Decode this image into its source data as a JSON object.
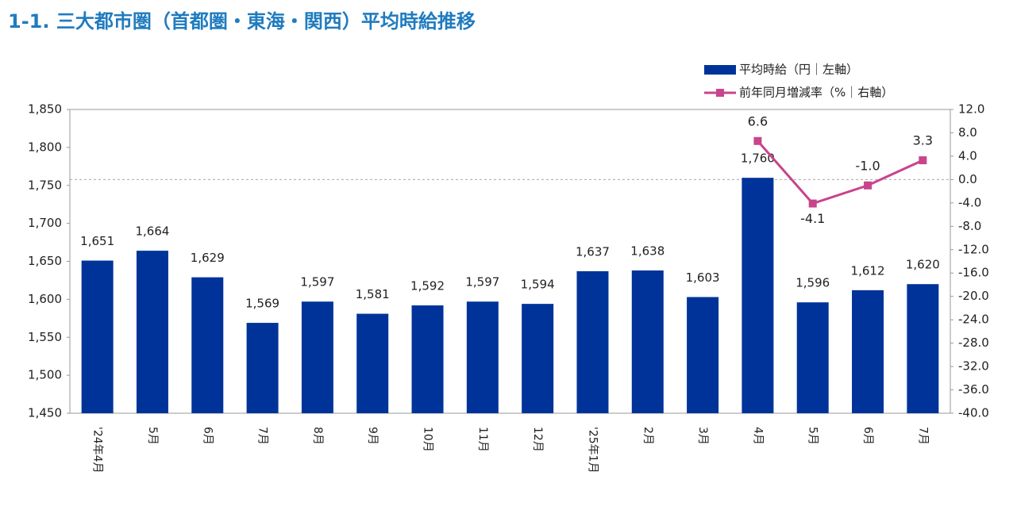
{
  "chart_data": {
    "type": "bar_line",
    "title": "1-1. 三大都市圏（首都圏・東海・関西）平均時給推移",
    "categories": [
      "'24年4月",
      "5月",
      "6月",
      "7月",
      "8月",
      "9月",
      "10月",
      "11月",
      "12月",
      "'25年1月",
      "2月",
      "3月",
      "4月",
      "5月",
      "6月",
      "7月"
    ],
    "series": [
      {
        "name": "平均時給（円｜左軸）",
        "color": "#003399",
        "kind": "bar",
        "values": [
          1651,
          1664,
          1629,
          1569,
          1597,
          1581,
          1592,
          1597,
          1594,
          1637,
          1638,
          1603,
          1760,
          1596,
          1612,
          1620
        ],
        "value_labels": [
          "1,651",
          "1,664",
          "1,629",
          "1,569",
          "1,597",
          "1,581",
          "1,592",
          "1,597",
          "1,594",
          "1,637",
          "1,638",
          "1,603",
          "1,760",
          "1,596",
          "1,612",
          "1,620"
        ]
      },
      {
        "name": "前年同月増減率（%｜右軸）",
        "color": "#c8448c",
        "kind": "line",
        "axis": "y2",
        "values": [
          null,
          null,
          null,
          null,
          null,
          null,
          null,
          null,
          null,
          null,
          null,
          null,
          6.6,
          -4.1,
          -1.0,
          3.3
        ],
        "value_labels": [
          null,
          null,
          null,
          null,
          null,
          null,
          null,
          null,
          null,
          null,
          null,
          null,
          "6.6",
          "-4.1",
          "-1.0",
          "3.3"
        ]
      }
    ],
    "ylim": [
      1450,
      1850
    ],
    "yticks": [
      {
        "value": 1450,
        "label": "1,450"
      },
      {
        "value": 1500,
        "label": "1,500"
      },
      {
        "value": 1550,
        "label": "1,550"
      },
      {
        "value": 1600,
        "label": "1,600"
      },
      {
        "value": 1650,
        "label": "1,650"
      },
      {
        "value": 1700,
        "label": "1,700"
      },
      {
        "value": 1750,
        "label": "1,750"
      },
      {
        "value": 1800,
        "label": "1,800"
      },
      {
        "value": 1850,
        "label": "1,850"
      }
    ],
    "y2lim": [
      -40,
      12
    ],
    "y2ticks": [
      {
        "value": 12,
        "label": "12.0"
      },
      {
        "value": 8,
        "label": "8.0"
      },
      {
        "value": 4,
        "label": "4.0"
      },
      {
        "value": 0,
        "label": "0.0"
      },
      {
        "value": -4,
        "label": "-4.0"
      },
      {
        "value": -8,
        "label": "-8.0"
      },
      {
        "value": -12,
        "label": "-12.0"
      },
      {
        "value": -16,
        "label": "-16.0"
      },
      {
        "value": -20,
        "label": "-20.0"
      },
      {
        "value": -24,
        "label": "-24.0"
      },
      {
        "value": -28,
        "label": "-28.0"
      },
      {
        "value": -32,
        "label": "-32.0"
      },
      {
        "value": -36,
        "label": "-36.0"
      },
      {
        "value": -40,
        "label": "-40.0"
      }
    ],
    "legend": "top-right"
  }
}
